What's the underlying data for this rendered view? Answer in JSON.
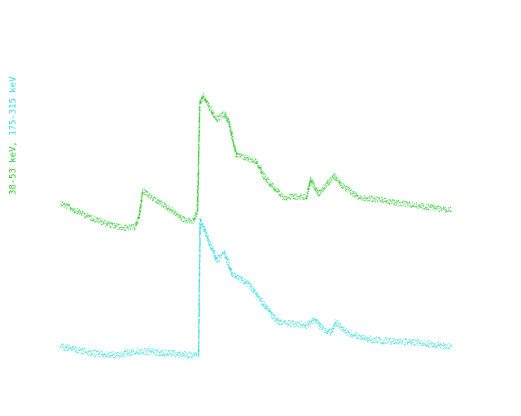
{
  "chart_data": {
    "type": "scatter",
    "ylabel": {
      "part1": "38-53 keV,",
      "part2": "175-315 keV"
    },
    "grid": false,
    "legend": "none",
    "x_range": [
      0,
      100
    ],
    "y_range": [
      0,
      100
    ],
    "series": [
      {
        "color": "#33cc33",
        "noise": 1.0,
        "points": [
          [
            0,
            54
          ],
          [
            3,
            52
          ],
          [
            8,
            49
          ],
          [
            13,
            46.5
          ],
          [
            17,
            45.5
          ],
          [
            19,
            46
          ],
          [
            20,
            49
          ],
          [
            21,
            58
          ],
          [
            23,
            56
          ],
          [
            28,
            52
          ],
          [
            32,
            48
          ],
          [
            34,
            48
          ],
          [
            35,
            51
          ],
          [
            35.6,
            87
          ],
          [
            36.5,
            90
          ],
          [
            38,
            86
          ],
          [
            40,
            82
          ],
          [
            42,
            84
          ],
          [
            43,
            81
          ],
          [
            45,
            70
          ],
          [
            50,
            68
          ],
          [
            52,
            63
          ],
          [
            56,
            57
          ],
          [
            57,
            56
          ],
          [
            63,
            56
          ],
          [
            64,
            62
          ],
          [
            66,
            57
          ],
          [
            68,
            60
          ],
          [
            70,
            63
          ],
          [
            72,
            60
          ],
          [
            76,
            56
          ],
          [
            82,
            55
          ],
          [
            86,
            54
          ],
          [
            92,
            53
          ],
          [
            100,
            51.5
          ]
        ]
      },
      {
        "color": "#33dddd",
        "noise": 1.1,
        "points": [
          [
            0,
            6
          ],
          [
            5,
            4.5
          ],
          [
            10,
            3.5
          ],
          [
            15,
            3
          ],
          [
            20,
            4.5
          ],
          [
            25,
            4
          ],
          [
            34,
            3
          ],
          [
            35.3,
            3.5
          ],
          [
            35.7,
            48
          ],
          [
            36.5,
            46
          ],
          [
            38,
            41
          ],
          [
            40,
            35
          ],
          [
            42,
            37
          ],
          [
            44,
            30
          ],
          [
            48,
            27
          ],
          [
            52,
            20
          ],
          [
            55,
            15
          ],
          [
            56,
            14
          ],
          [
            63,
            13
          ],
          [
            65,
            15
          ],
          [
            67,
            12
          ],
          [
            69,
            10.5
          ],
          [
            70.5,
            14
          ],
          [
            73,
            11
          ],
          [
            77,
            9
          ],
          [
            82,
            8
          ],
          [
            88,
            7.5
          ],
          [
            94,
            7
          ],
          [
            100,
            6
          ]
        ]
      }
    ]
  }
}
